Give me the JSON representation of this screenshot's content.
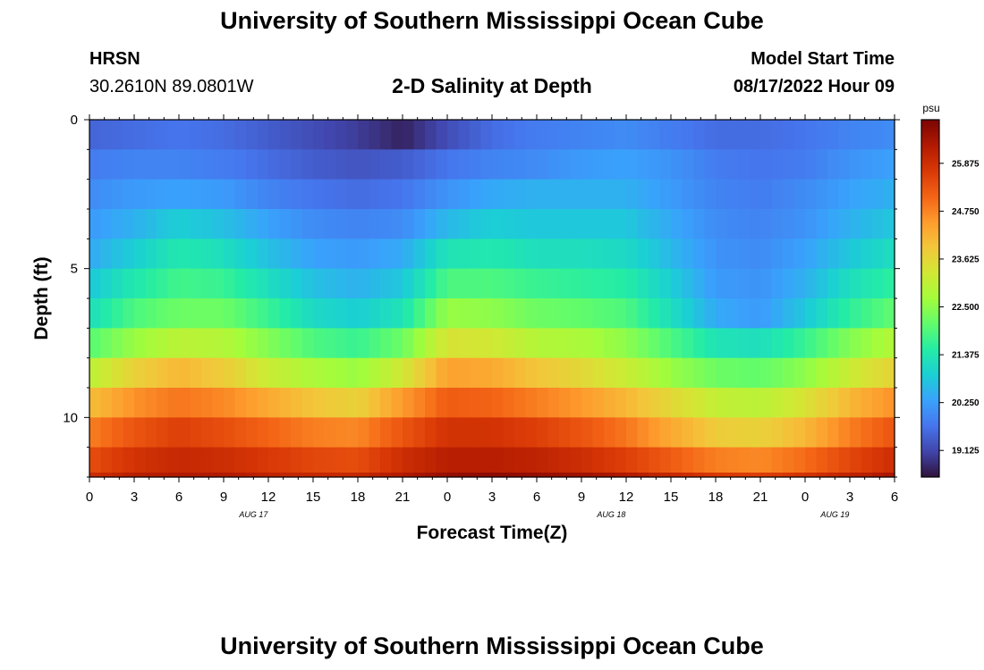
{
  "header": {
    "title": "University of Southern Mississippi Ocean Cube",
    "station": "HRSN",
    "coordinates": "30.2610N  89.0801W",
    "plot_title": "2-D Salinity at Depth",
    "model_start_label": "Model Start Time",
    "model_start_value": "08/17/2022 Hour 09"
  },
  "footer": {
    "title": "University of Southern Mississippi Ocean Cube"
  },
  "chart_data": {
    "type": "heatmap",
    "title": "2-D Salinity at Depth",
    "xlabel": "Forecast Time(Z)",
    "ylabel": "Depth (ft)",
    "x_range_hours": [
      0,
      54
    ],
    "x_tick_labels": [
      "0",
      "3",
      "6",
      "9",
      "12",
      "15",
      "18",
      "21",
      "0",
      "3",
      "6",
      "9",
      "12",
      "15",
      "18",
      "21",
      "0",
      "3",
      "6"
    ],
    "date_labels": [
      {
        "label": "AUG 17",
        "hour": 11
      },
      {
        "label": "AUG 18",
        "hour": 35
      },
      {
        "label": "AUG 19",
        "hour": 50
      }
    ],
    "y_range_ft": [
      0,
      12
    ],
    "y_tick_labels": [
      "0",
      "5",
      "10"
    ],
    "depth_layers_ft": [
      0.5,
      1.5,
      2.5,
      3.5,
      4.5,
      5.5,
      6.5,
      7.5,
      8.5,
      9.5,
      10.5,
      11.5,
      12.2
    ],
    "colorbar": {
      "unit": "psu",
      "min": 18.5,
      "max": 26.9,
      "tick_values": [
        "19.125",
        "20.250",
        "21.375",
        "22.500",
        "23.625",
        "24.750",
        "25.875"
      ],
      "colors": [
        "#30123b",
        "#4145ab",
        "#4675ed",
        "#39a2fc",
        "#1bcfd4",
        "#24eca6",
        "#61fc6c",
        "#a4fc3b",
        "#d1e834",
        "#f3c63a",
        "#fe9b2d",
        "#f36315",
        "#d93806",
        "#b11901",
        "#7a0403"
      ]
    },
    "salinity_psu": {
      "description": "rows = depth layers (top to bottom), columns = forecast hours 0..54 step 3",
      "hours": [
        0,
        3,
        6,
        9,
        12,
        15,
        18,
        21,
        24,
        27,
        30,
        33,
        36,
        39,
        42,
        45,
        48,
        51,
        54
      ],
      "values": [
        [
          19.5,
          19.6,
          19.7,
          19.6,
          19.4,
          19.2,
          19.0,
          18.7,
          19.2,
          19.6,
          19.8,
          19.9,
          20.0,
          19.8,
          19.6,
          19.6,
          19.7,
          19.9,
          20.0
        ],
        [
          19.8,
          19.9,
          19.9,
          19.8,
          19.6,
          19.4,
          19.3,
          19.4,
          19.7,
          19.9,
          20.0,
          20.2,
          20.3,
          20.1,
          19.8,
          19.7,
          19.8,
          20.1,
          20.3
        ],
        [
          20.0,
          20.2,
          20.3,
          20.2,
          19.9,
          19.7,
          19.6,
          19.7,
          20.1,
          20.4,
          20.5,
          20.5,
          20.5,
          20.2,
          19.9,
          19.8,
          20.0,
          20.3,
          20.5
        ],
        [
          20.2,
          20.5,
          20.9,
          20.7,
          20.3,
          20.0,
          19.9,
          20.0,
          20.6,
          20.9,
          20.8,
          20.8,
          20.8,
          20.4,
          20.0,
          19.9,
          20.1,
          20.5,
          20.8
        ],
        [
          20.4,
          20.9,
          21.4,
          21.2,
          20.7,
          20.3,
          20.2,
          20.4,
          21.3,
          21.4,
          21.2,
          21.2,
          21.1,
          20.6,
          20.1,
          20.0,
          20.3,
          20.8,
          21.2
        ],
        [
          20.8,
          21.4,
          21.8,
          21.7,
          21.2,
          20.7,
          20.5,
          20.8,
          21.9,
          21.9,
          21.7,
          21.6,
          21.5,
          20.9,
          20.2,
          20.1,
          20.5,
          21.2,
          21.6
        ],
        [
          21.2,
          21.9,
          22.2,
          22.2,
          21.7,
          21.1,
          20.9,
          21.3,
          22.6,
          22.5,
          22.2,
          22.1,
          21.9,
          21.2,
          20.4,
          20.2,
          20.8,
          21.6,
          22.1
        ],
        [
          22.0,
          22.6,
          23.0,
          22.9,
          22.4,
          21.9,
          21.7,
          22.2,
          23.4,
          23.3,
          22.9,
          22.8,
          22.5,
          21.9,
          21.3,
          21.2,
          21.7,
          22.4,
          22.9
        ],
        [
          23.0,
          23.7,
          24.1,
          23.8,
          23.2,
          22.8,
          22.6,
          23.3,
          24.4,
          24.3,
          23.9,
          23.6,
          23.2,
          22.6,
          22.2,
          22.1,
          22.5,
          23.2,
          23.7
        ],
        [
          24.0,
          24.6,
          24.9,
          24.7,
          24.3,
          23.9,
          23.7,
          24.5,
          25.2,
          25.1,
          24.8,
          24.5,
          24.1,
          23.6,
          23.1,
          23.0,
          23.4,
          24.1,
          24.6
        ],
        [
          24.8,
          25.3,
          25.6,
          25.4,
          25.1,
          24.8,
          24.7,
          25.3,
          25.8,
          25.8,
          25.6,
          25.3,
          24.9,
          24.3,
          23.8,
          23.7,
          24.1,
          24.8,
          25.3
        ],
        [
          25.4,
          25.8,
          26.0,
          25.9,
          25.7,
          25.5,
          25.4,
          25.9,
          26.2,
          26.2,
          26.1,
          25.9,
          25.6,
          25.2,
          24.8,
          24.7,
          25.0,
          25.5,
          25.9
        ],
        [
          25.9,
          26.2,
          26.3,
          26.3,
          26.1,
          26.0,
          26.0,
          26.3,
          26.6,
          26.7,
          26.6,
          26.5,
          26.3,
          26.0,
          25.7,
          25.6,
          25.8,
          26.1,
          26.4
        ]
      ]
    }
  }
}
